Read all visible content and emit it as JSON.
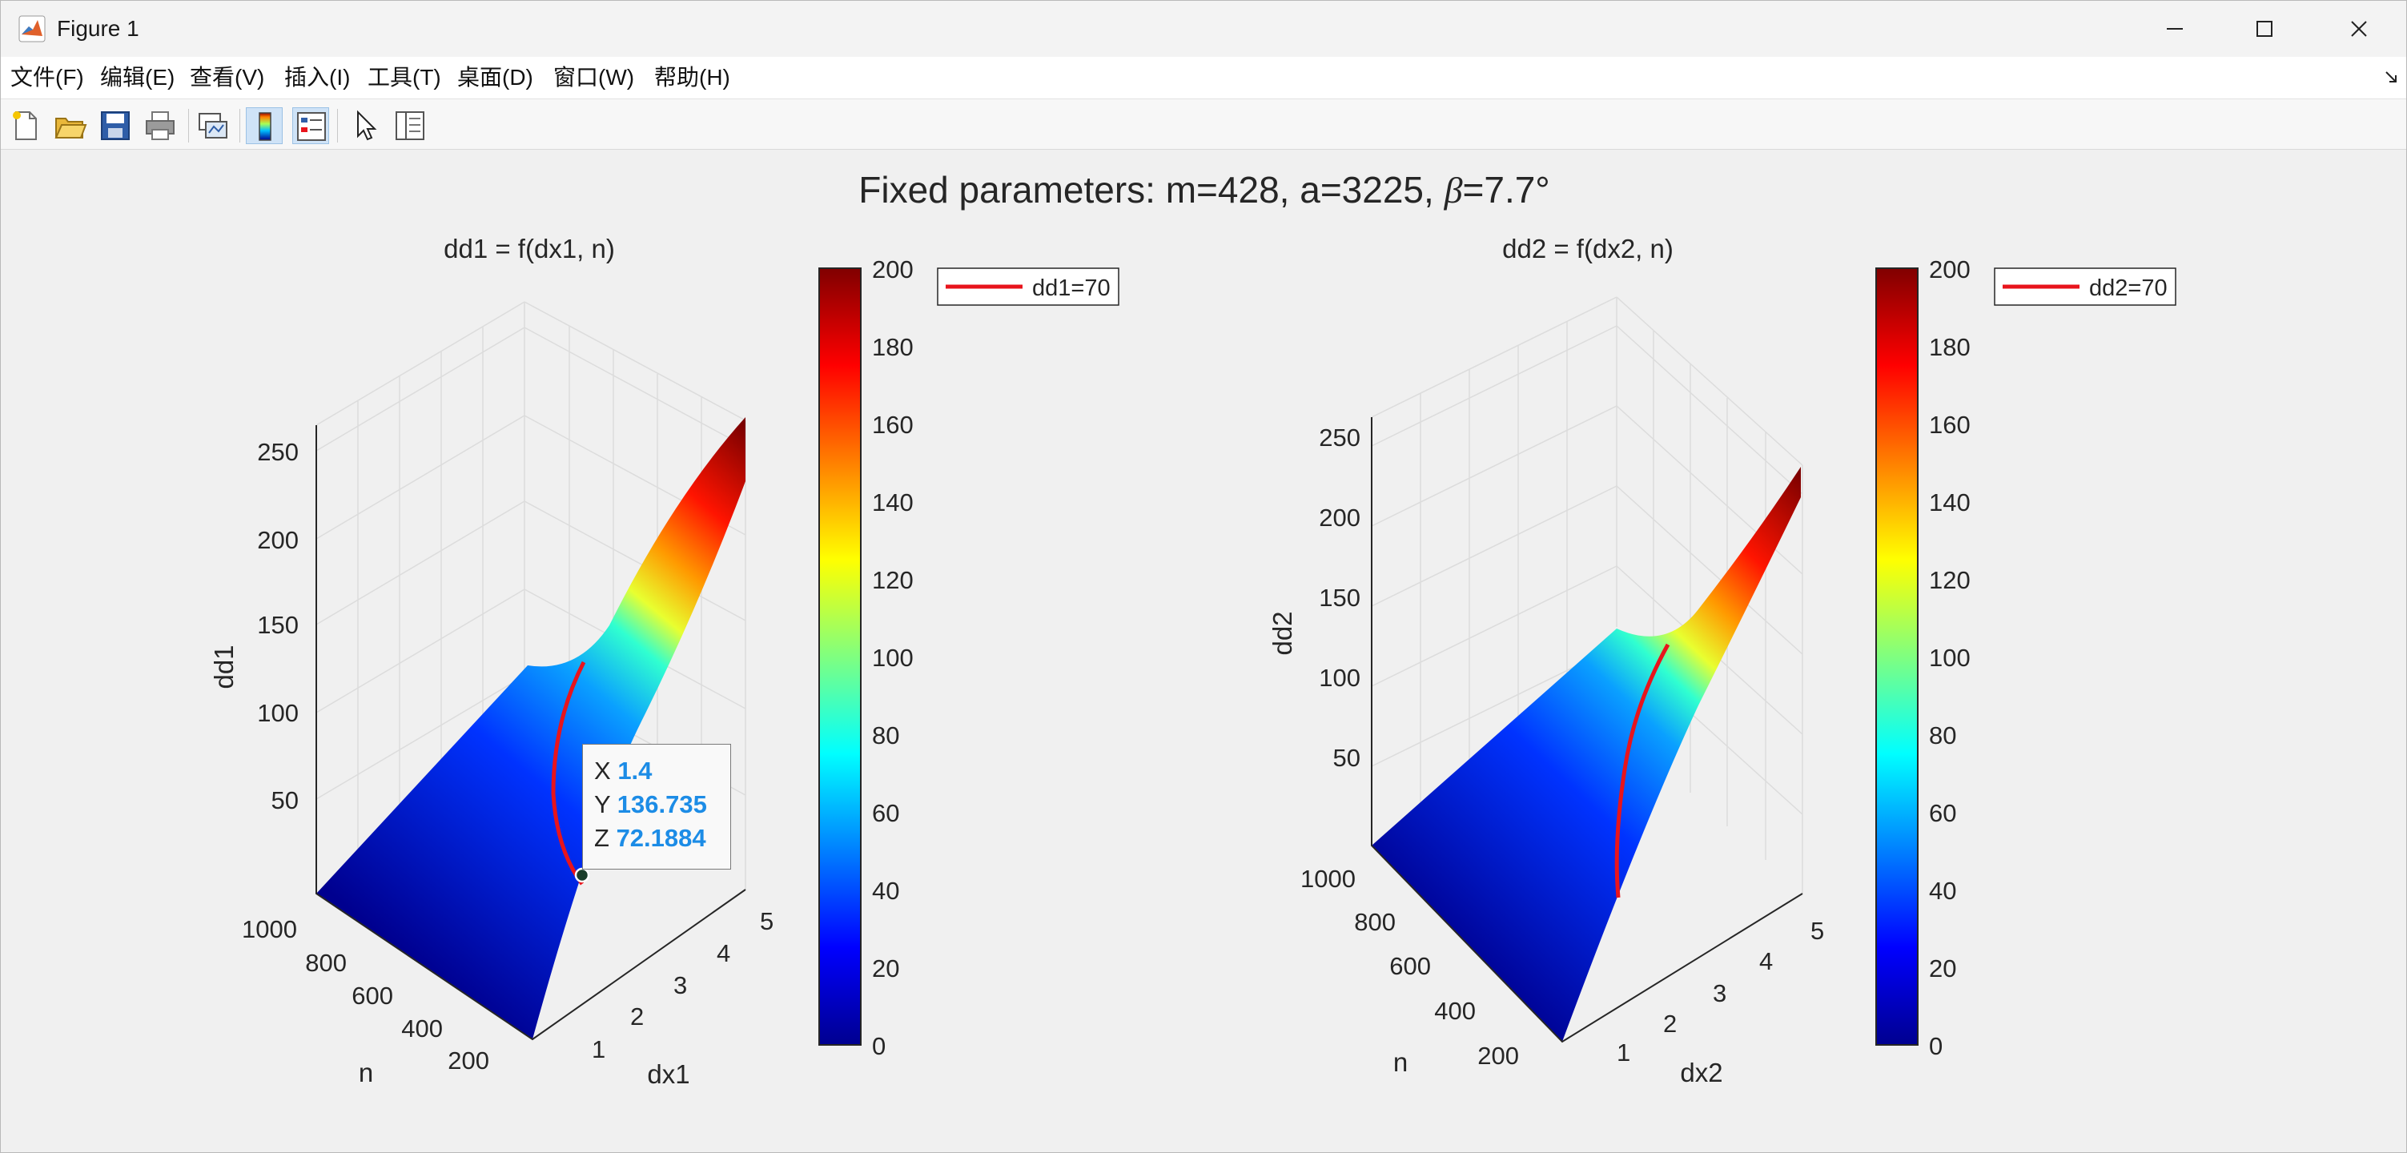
{
  "window": {
    "title": "Figure 1"
  },
  "menu": [
    "文件(F)",
    "编辑(E)",
    "查看(V)",
    "插入(I)",
    "工具(T)",
    "桌面(D)",
    "窗口(W)",
    "帮助(H)"
  ],
  "toolbar": {
    "icons": [
      "new-figure-icon",
      "open-file-icon",
      "save-icon",
      "print-icon",
      "link-plot-icon",
      "colorbar-toggle-icon",
      "legend-toggle-icon",
      "edit-plot-pointer-icon",
      "property-inspector-icon"
    ]
  },
  "figure": {
    "suptitle_prefix": "Fixed parameters: m=428, a=3225, ",
    "suptitle_beta": "β",
    "suptitle_suffix": "=7.7°"
  },
  "chart_data": [
    {
      "type": "surface",
      "title": "dd1 = f(dx1, n)",
      "xlabel": "dx1",
      "ylabel": "n",
      "zlabel": "dd1",
      "x_ticks": [
        "1",
        "2",
        "3",
        "4",
        "5"
      ],
      "y_ticks": [
        "200",
        "400",
        "600",
        "800",
        "1000"
      ],
      "z_ticks": [
        "50",
        "100",
        "150",
        "200",
        "250"
      ],
      "colorbar": {
        "colormap": "jet",
        "min": 0,
        "max": 200,
        "ticks": [
          "0",
          "20",
          "40",
          "60",
          "80",
          "100",
          "120",
          "140",
          "160",
          "180",
          "200"
        ]
      },
      "legend": [
        "dd1=70"
      ],
      "contour": {
        "level": 70,
        "color": "#e8141c"
      },
      "datatip": {
        "x_label": "X",
        "x": "1.4",
        "y_label": "Y",
        "y": "136.735",
        "z_label": "Z",
        "z": "72.1884"
      }
    },
    {
      "type": "surface",
      "title": "dd2 = f(dx2, n)",
      "xlabel": "dx2",
      "ylabel": "n",
      "zlabel": "dd2",
      "x_ticks": [
        "1",
        "2",
        "3",
        "4",
        "5"
      ],
      "y_ticks": [
        "200",
        "400",
        "600",
        "800",
        "1000"
      ],
      "z_ticks": [
        "50",
        "100",
        "150",
        "200",
        "250"
      ],
      "colorbar": {
        "colormap": "jet",
        "min": 0,
        "max": 200,
        "ticks": [
          "0",
          "20",
          "40",
          "60",
          "80",
          "100",
          "120",
          "140",
          "160",
          "180",
          "200"
        ]
      },
      "legend": [
        "dd2=70"
      ],
      "contour": {
        "level": 70,
        "color": "#e8141c"
      }
    }
  ]
}
